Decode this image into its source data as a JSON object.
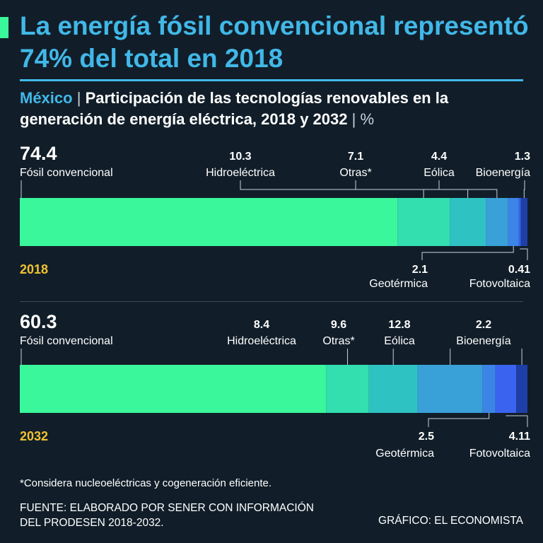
{
  "headline": "La energía fósil convencional representó 74% del total en 2018",
  "subtitle": {
    "country": "México",
    "separator": "|",
    "title": "Participación de las tecnologías renovables en la generación de energía eléctrica, 2018 y 2032",
    "unit": "%"
  },
  "chart_data": {
    "type": "bar",
    "orientation": "horizontal-stacked",
    "unit": "%",
    "categories": [
      "Fósil convencional",
      "Hidroeléctrica",
      "Otras*",
      "Eólica",
      "Geotérmica",
      "Fotovoltaica",
      "Bioenergía"
    ],
    "series": [
      {
        "name": "2018",
        "values": [
          "74.4",
          "10.3",
          "7.1",
          "4.4",
          "2.1",
          "0.41",
          "1.3"
        ]
      },
      {
        "name": "2032",
        "values": [
          "60.3",
          "8.4",
          "9.6",
          "12.8",
          "2.5",
          "4.11",
          "2.2"
        ]
      }
    ],
    "colors": [
      "#3af79b",
      "#33deaf",
      "#2fc2c2",
      "#3aa0d8",
      "#3c85e6",
      "#3a63f0",
      "#1e3fa8"
    ]
  },
  "footnote": "*Considera nucleoeléctricas y cogeneración eficiente.",
  "source": "Fuente: Elaborado por SENER con información\ndel PRODESEN 2018-2032.",
  "credit": "Gráfico: El Economista"
}
